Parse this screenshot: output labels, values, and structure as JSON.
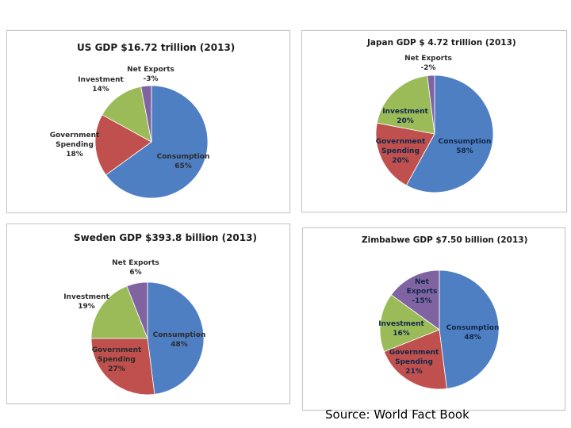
{
  "chart_data": [
    {
      "type": "pie",
      "title": "US GDP $16.72 trillion (2013)",
      "slices": [
        {
          "name": "Consumption",
          "value": 65,
          "label": "65%"
        },
        {
          "name": "Government Spending",
          "value": 18,
          "label": "18%"
        },
        {
          "name": "Investment",
          "value": 14,
          "label": "14%"
        },
        {
          "name": "Net Exports",
          "value": 3,
          "label": "-3%"
        }
      ],
      "colors": [
        "#4f7fc3",
        "#c0504d",
        "#9bbb59",
        "#8064a2"
      ]
    },
    {
      "type": "pie",
      "title": "Japan GDP $ 4.72 trillion (2013)",
      "slices": [
        {
          "name": "Consumption",
          "value": 58,
          "label": "58%"
        },
        {
          "name": "Government Spending",
          "value": 20,
          "label": "20%"
        },
        {
          "name": "Investment",
          "value": 20,
          "label": "20%"
        },
        {
          "name": "Net Exports",
          "value": 2,
          "label": "-2%"
        }
      ],
      "colors": [
        "#4f7fc3",
        "#c0504d",
        "#9bbb59",
        "#8064a2"
      ]
    },
    {
      "type": "pie",
      "title": "Sweden GDP $393.8 billion (2013)",
      "slices": [
        {
          "name": "Consumption",
          "value": 48,
          "label": "48%"
        },
        {
          "name": "Government Spending",
          "value": 27,
          "label": "27%"
        },
        {
          "name": "Investment",
          "value": 19,
          "label": "19%"
        },
        {
          "name": "Net Exports",
          "value": 6,
          "label": "6%"
        }
      ],
      "colors": [
        "#4f7fc3",
        "#c0504d",
        "#9bbb59",
        "#8064a2"
      ]
    },
    {
      "type": "pie",
      "title": "Zimbabwe GDP $7.50 billion (2013)",
      "slices": [
        {
          "name": "Consumption",
          "value": 48,
          "label": "48%"
        },
        {
          "name": "Government Spending",
          "value": 21,
          "label": "21%"
        },
        {
          "name": "Investment",
          "value": 16,
          "label": "16%"
        },
        {
          "name": "Net Exports",
          "value": 15,
          "label": "-15%"
        }
      ],
      "colors": [
        "#4f7fc3",
        "#c0504d",
        "#9bbb59",
        "#8064a2"
      ]
    }
  ],
  "labels": {
    "consumption": "Consumption",
    "government": "Government",
    "spending": "Spending",
    "investment": "Investment",
    "net_exports": "Net Exports",
    "net": "Net",
    "exports": "Exports"
  },
  "source": "Source: World Fact Book"
}
